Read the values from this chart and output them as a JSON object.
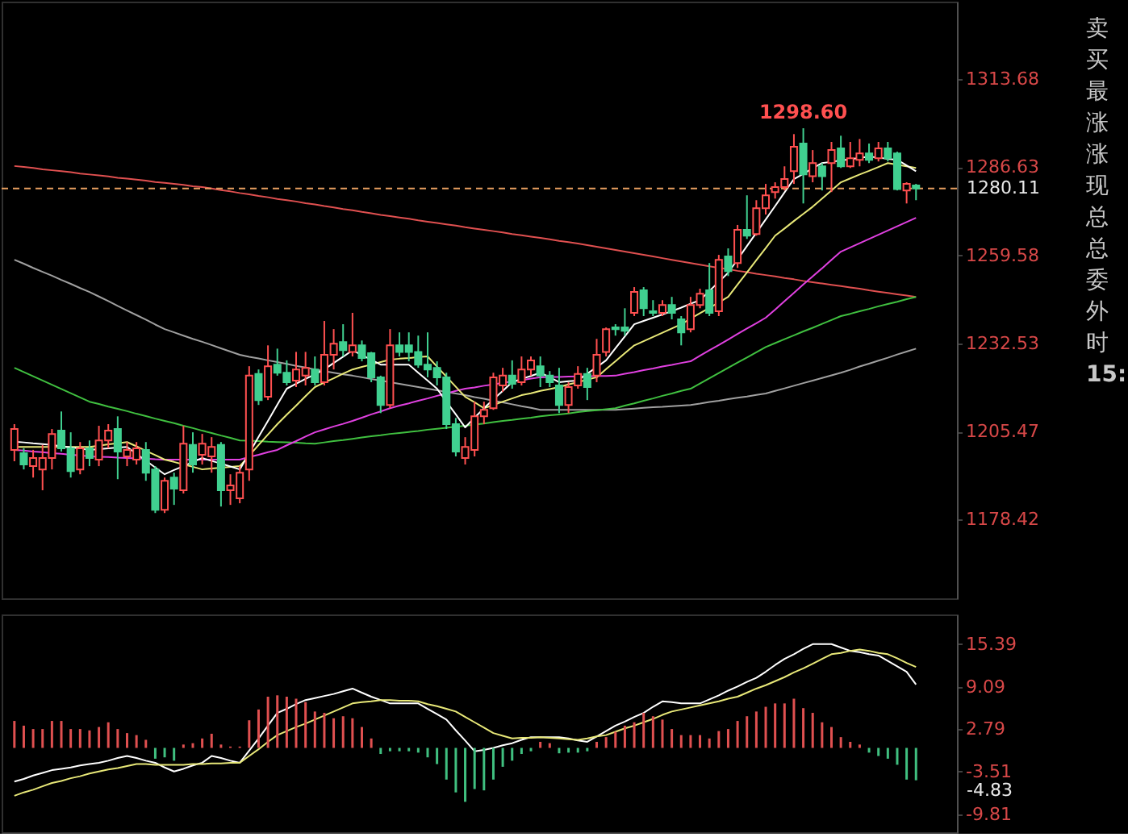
{
  "chart_data": [
    {
      "type": "candlestick",
      "categories": [
        null,
        null,
        null,
        null,
        null,
        null,
        null,
        null,
        null,
        null,
        null,
        null,
        null,
        null,
        null,
        null,
        null,
        null,
        null,
        null,
        null,
        null,
        null,
        null,
        null,
        null,
        null,
        null,
        null,
        null,
        null,
        null,
        null,
        null,
        null,
        null,
        null,
        null,
        null,
        null,
        null,
        null,
        null,
        null,
        null,
        null,
        null,
        null,
        null,
        null,
        null,
        null,
        null,
        null,
        null,
        null,
        null,
        null,
        null,
        null,
        null,
        null,
        null,
        null,
        null,
        null,
        null,
        null,
        null,
        null,
        null,
        null,
        null,
        null,
        null,
        null,
        null,
        null,
        null,
        null,
        null,
        null,
        null,
        null,
        null,
        null,
        null,
        null,
        null,
        null,
        null,
        null,
        null,
        null,
        null,
        null,
        null
      ],
      "ohlc": [
        [
          1199.8,
          1207.7,
          1196.3,
          1206.2
        ],
        [
          1198.8,
          1200.3,
          1193.8,
          1195.3
        ],
        [
          1194.8,
          1199.8,
          1191.3,
          1197.3
        ],
        [
          1193.8,
          1201.3,
          1187.4,
          1197.3
        ],
        [
          1197.3,
          1206.2,
          1193.8,
          1204.7
        ],
        [
          1205.7,
          1211.6,
          1199.3,
          1200.3
        ],
        [
          1200.3,
          1205.2,
          1191.3,
          1193.3
        ],
        [
          1193.8,
          1202.2,
          1192.3,
          1200.3
        ],
        [
          1200.3,
          1202.7,
          1194.8,
          1197.3
        ],
        [
          1196.8,
          1207.2,
          1194.8,
          1202.7
        ],
        [
          1202.7,
          1207.7,
          1200.3,
          1205.7
        ],
        [
          1206.2,
          1210.1,
          1190.8,
          1199.3
        ],
        [
          1197.8,
          1202.2,
          1194.8,
          1199.8
        ],
        [
          1196.8,
          1202.2,
          1195.3,
          1200.3
        ],
        [
          1199.8,
          1202.2,
          1190.3,
          1192.8
        ],
        [
          1193.8,
          1194.8,
          1180.4,
          1181.4
        ],
        [
          1181.4,
          1191.3,
          1180.4,
          1190.3
        ],
        [
          1191.3,
          1192.8,
          1182.9,
          1187.9
        ],
        [
          1187.4,
          1207.2,
          1186.4,
          1201.7
        ],
        [
          1201.3,
          1205.2,
          1192.8,
          1195.3
        ],
        [
          1198.3,
          1204.7,
          1195.3,
          1201.7
        ],
        [
          1197.8,
          1203.7,
          1192.8,
          1200.7
        ],
        [
          1201.3,
          1202.2,
          1182.4,
          1187.4
        ],
        [
          1187.4,
          1192.3,
          1182.9,
          1188.9
        ],
        [
          1184.9,
          1194.8,
          1183.4,
          1192.8
        ],
        [
          1193.8,
          1225.5,
          1190.3,
          1222.6
        ],
        [
          1223.1,
          1224.5,
          1213.6,
          1215.1
        ],
        [
          1216.1,
          1231.9,
          1215.1,
          1225.5
        ],
        [
          1226.0,
          1230.9,
          1222.6,
          1223.5
        ],
        [
          1223.5,
          1227.3,
          1219.6,
          1220.6
        ],
        [
          1221.1,
          1229.9,
          1219.1,
          1224.5
        ],
        [
          1222.6,
          1229.9,
          1219.6,
          1225.0
        ],
        [
          1224.5,
          1228.5,
          1219.6,
          1220.6
        ],
        [
          1220.6,
          1239.4,
          1219.6,
          1229.0
        ],
        [
          1229.0,
          1236.9,
          1224.5,
          1232.4
        ],
        [
          1232.9,
          1238.4,
          1228.5,
          1230.4
        ],
        [
          1229.9,
          1241.9,
          1228.5,
          1231.9
        ],
        [
          1231.9,
          1233.4,
          1227.0,
          1228.0
        ],
        [
          1229.5,
          1229.9,
          1220.6,
          1222.1
        ],
        [
          1222.1,
          1222.6,
          1211.1,
          1213.6
        ],
        [
          1213.6,
          1236.9,
          1212.6,
          1231.9
        ],
        [
          1231.9,
          1235.9,
          1228.5,
          1229.9
        ],
        [
          1231.9,
          1235.9,
          1227.0,
          1229.9
        ],
        [
          1229.9,
          1234.9,
          1225.0,
          1226.0
        ],
        [
          1226.0,
          1235.9,
          1222.1,
          1224.5
        ],
        [
          1225.0,
          1227.0,
          1219.6,
          1222.1
        ],
        [
          1222.1,
          1223.5,
          1206.2,
          1207.7
        ],
        [
          1207.7,
          1209.6,
          1197.8,
          1199.3
        ],
        [
          1197.3,
          1203.7,
          1195.3,
          1200.7
        ],
        [
          1199.8,
          1214.6,
          1197.8,
          1210.1
        ],
        [
          1210.1,
          1214.6,
          1207.7,
          1212.1
        ],
        [
          1212.6,
          1223.5,
          1212.1,
          1222.1
        ],
        [
          1219.6,
          1225.0,
          1217.6,
          1222.6
        ],
        [
          1222.6,
          1227.3,
          1218.6,
          1220.1
        ],
        [
          1220.6,
          1228.5,
          1219.6,
          1224.5
        ],
        [
          1224.5,
          1228.5,
          1222.6,
          1227.3
        ],
        [
          1225.5,
          1228.5,
          1219.1,
          1222.6
        ],
        [
          1222.6,
          1224.0,
          1219.1,
          1220.6
        ],
        [
          1219.6,
          1225.0,
          1211.1,
          1213.6
        ],
        [
          1213.6,
          1220.6,
          1211.1,
          1219.1
        ],
        [
          1219.6,
          1225.5,
          1218.6,
          1223.1
        ],
        [
          1223.1,
          1225.0,
          1215.1,
          1219.1
        ],
        [
          1222.6,
          1233.9,
          1220.6,
          1229.0
        ],
        [
          1229.9,
          1237.4,
          1228.5,
          1236.9
        ],
        [
          1237.4,
          1238.4,
          1234.9,
          1236.9
        ],
        [
          1237.4,
          1243.3,
          1234.9,
          1236.4
        ],
        [
          1241.9,
          1249.8,
          1240.9,
          1248.3
        ],
        [
          1248.8,
          1249.8,
          1240.9,
          1243.3
        ],
        [
          1242.4,
          1245.8,
          1240.9,
          1241.9
        ],
        [
          1241.9,
          1245.8,
          1240.9,
          1244.3
        ],
        [
          1244.3,
          1246.8,
          1239.9,
          1241.9
        ],
        [
          1239.9,
          1240.9,
          1231.9,
          1235.9
        ],
        [
          1236.9,
          1246.8,
          1235.9,
          1244.3
        ],
        [
          1244.3,
          1249.3,
          1243.3,
          1247.8
        ],
        [
          1248.8,
          1257.2,
          1240.9,
          1241.9
        ],
        [
          1242.4,
          1259.7,
          1240.9,
          1258.2
        ],
        [
          1259.2,
          1261.7,
          1253.2,
          1254.7
        ],
        [
          1257.2,
          1268.9,
          1255.7,
          1267.4
        ],
        [
          1267.4,
          1278.0,
          1264.6,
          1265.6
        ],
        [
          1266.1,
          1276.5,
          1265.6,
          1274.0
        ],
        [
          1274.0,
          1281.5,
          1272.1,
          1278.0
        ],
        [
          1279.0,
          1282.0,
          1277.0,
          1280.5
        ],
        [
          1280.5,
          1286.9,
          1279.5,
          1283.0
        ],
        [
          1285.4,
          1296.8,
          1281.5,
          1292.9
        ],
        [
          1293.9,
          1298.6,
          1275.5,
          1284.4
        ],
        [
          1283.9,
          1291.9,
          1282.0,
          1287.9
        ],
        [
          1286.9,
          1287.9,
          1279.5,
          1283.9
        ],
        [
          1287.9,
          1294.4,
          1279.0,
          1291.9
        ],
        [
          1292.4,
          1296.3,
          1286.4,
          1286.9
        ],
        [
          1286.9,
          1294.4,
          1286.4,
          1289.4
        ],
        [
          1288.9,
          1295.3,
          1286.9,
          1290.9
        ],
        [
          1290.9,
          1293.9,
          1287.9,
          1288.9
        ],
        [
          1289.4,
          1294.4,
          1288.4,
          1292.4
        ],
        [
          1292.4,
          1294.4,
          1288.4,
          1289.4
        ],
        [
          1290.9,
          1291.4,
          1279.5,
          1279.9
        ],
        [
          1279.5,
          1282.0,
          1275.5,
          1281.5
        ],
        [
          1281.0,
          1281.5,
          1276.5,
          1280.11
        ]
      ],
      "colors": [
        "#ff5050",
        "#40d090",
        "#ff5050",
        "#ff5050",
        "#ff5050",
        "#40d090",
        "#40d090",
        "#ff5050",
        "#40d090",
        "#ff5050",
        "#ff5050",
        "#40d090",
        "#ff5050",
        "#ff5050",
        "#40d090",
        "#40d090",
        "#ff5050",
        "#40d090",
        "#ff5050",
        "#40d090",
        "#ff5050",
        "#ff5050",
        "#40d090",
        "#ff5050",
        "#ff5050",
        "#ff5050",
        "#40d090",
        "#ff5050",
        "#40d090",
        "#40d090",
        "#ff5050",
        "#ff5050",
        "#40d090",
        "#ff5050",
        "#ff5050",
        "#40d090",
        "#ff5050",
        "#40d090",
        "#40d090",
        "#40d090",
        "#ff5050",
        "#40d090",
        "#40d090",
        "#40d090",
        "#40d090",
        "#40d090",
        "#40d090",
        "#40d090",
        "#ff5050",
        "#ff5050",
        "#ff5050",
        "#ff5050",
        "#ff5050",
        "#40d090",
        "#ff5050",
        "#ff5050",
        "#40d090",
        "#40d090",
        "#40d090",
        "#ff5050",
        "#ff5050",
        "#40d090",
        "#ff5050",
        "#ff5050",
        "#40d090",
        "#40d090",
        "#ff5050",
        "#40d090",
        "#40d090",
        "#ff5050",
        "#40d090",
        "#40d090",
        "#ff5050",
        "#ff5050",
        "#40d090",
        "#ff5050",
        "#40d090",
        "#ff5050",
        "#40d090",
        "#ff5050",
        "#ff5050",
        "#ff5050",
        "#ff5050",
        "#ff5050",
        "#40d090",
        "#ff5050",
        "#40d090",
        "#ff5050",
        "#40d090",
        "#ff5050",
        "#ff5050",
        "#40d090",
        "#ff5050",
        "#40d090",
        "#40d090",
        "#ff5050",
        "#40d090"
      ],
      "series": [
        {
          "type": "line",
          "color": "#e05050",
          "values": [
            1287.0,
            1286.7,
            1286.4,
            1286.0,
            1285.7,
            1285.4,
            1285.1,
            1284.7,
            1284.4,
            1284.1,
            1283.8,
            1283.4,
            1283.1,
            1282.8,
            1282.5,
            1282.1,
            1281.8,
            1281.5,
            1281.2,
            1280.8,
            1280.5,
            1280.1,
            1279.6,
            1279.2,
            1278.7,
            1278.3,
            1277.8,
            1277.4,
            1276.9,
            1276.5,
            1276.1,
            1275.6,
            1275.2,
            1274.7,
            1274.3,
            1273.8,
            1273.4,
            1272.9,
            1272.5,
            1272.0,
            1271.6,
            1271.2,
            1270.8,
            1270.3,
            1269.9,
            1269.5,
            1269.1,
            1268.7,
            1268.2,
            1267.8,
            1267.4,
            1267.0,
            1266.6,
            1266.1,
            1265.7,
            1265.3,
            1264.9,
            1264.5,
            1264.0,
            1263.6,
            1263.2,
            1262.7,
            1262.2,
            1261.7,
            1261.2,
            1260.7,
            1260.2,
            1259.7,
            1259.2,
            1258.7,
            1258.2,
            1257.7,
            1257.2,
            1256.7,
            1256.2,
            1255.7,
            1255.3,
            1254.8,
            1254.4,
            1253.9,
            1253.5,
            1253.1,
            1252.6,
            1252.2,
            1251.7,
            1251.3,
            1250.9,
            1250.5,
            1250.1,
            1249.7,
            1249.3,
            1248.8,
            1248.4,
            1248.0,
            1247.6,
            1247.2,
            1246.8
          ]
        },
        {
          "type": "line",
          "color": "#a0a0a0",
          "values": [
            1258.2,
            1257.0,
            1255.7,
            1254.5,
            1253.3,
            1252.0,
            1250.8,
            1249.5,
            1248.3,
            1246.9,
            1245.5,
            1244.0,
            1242.6,
            1241.2,
            1239.8,
            1238.3,
            1236.9,
            1235.9,
            1234.9,
            1233.9,
            1233.0,
            1232.0,
            1231.0,
            1230.0,
            1229.0,
            1228.4,
            1227.9,
            1227.3,
            1226.8,
            1226.2,
            1225.6,
            1225.1,
            1224.5,
            1224.0,
            1223.5,
            1223.0,
            1222.6,
            1222.1,
            1221.6,
            1221.1,
            1220.6,
            1220.1,
            1219.6,
            1219.1,
            1218.6,
            1218.1,
            1217.6,
            1217.1,
            1216.6,
            1216.0,
            1215.5,
            1214.9,
            1214.4,
            1213.8,
            1213.2,
            1212.7,
            1212.1,
            1212.1,
            1212.1,
            1212.1,
            1212.1,
            1212.1,
            1212.1,
            1212.1,
            1212.1,
            1212.3,
            1212.5,
            1212.7,
            1212.9,
            1213.0,
            1213.2,
            1213.4,
            1213.6,
            1214.0,
            1214.5,
            1214.9,
            1215.4,
            1215.8,
            1216.2,
            1216.7,
            1217.1,
            1217.9,
            1218.7,
            1219.5,
            1220.3,
            1221.1,
            1221.9,
            1222.7,
            1223.5,
            1224.4,
            1225.4,
            1226.3,
            1227.2,
            1228.1,
            1229.1,
            1230.0,
            1230.9
          ]
        },
        {
          "type": "line",
          "color": "#40c040",
          "values": [
            1225.0,
            1223.7,
            1222.4,
            1221.1,
            1219.8,
            1218.5,
            1217.2,
            1215.9,
            1214.6,
            1213.9,
            1213.1,
            1212.4,
            1211.7,
            1210.9,
            1210.2,
            1209.4,
            1208.7,
            1208.0,
            1207.2,
            1206.5,
            1205.7,
            1205.0,
            1204.2,
            1203.5,
            1202.7,
            1202.6,
            1202.5,
            1202.3,
            1202.2,
            1202.1,
            1202.0,
            1201.8,
            1201.7,
            1202.1,
            1202.5,
            1202.8,
            1203.2,
            1203.6,
            1204.0,
            1204.3,
            1204.7,
            1205.0,
            1205.3,
            1205.6,
            1206.0,
            1206.3,
            1206.6,
            1206.9,
            1207.2,
            1207.6,
            1207.9,
            1208.3,
            1208.7,
            1209.0,
            1209.4,
            1209.7,
            1210.1,
            1210.4,
            1210.7,
            1211.0,
            1211.4,
            1211.7,
            1212.0,
            1212.3,
            1212.6,
            1213.4,
            1214.1,
            1214.9,
            1215.6,
            1216.4,
            1217.1,
            1217.9,
            1218.6,
            1220.2,
            1221.8,
            1223.4,
            1225.0,
            1226.6,
            1228.2,
            1229.8,
            1231.4,
            1232.6,
            1233.8,
            1235.0,
            1236.2,
            1237.3,
            1238.5,
            1239.7,
            1240.9,
            1241.6,
            1242.4,
            1243.1,
            1243.9,
            1244.6,
            1245.3,
            1246.1,
            1246.8
          ]
        },
        {
          "type": "line",
          "color": "#e040e0",
          "values": [
            1199.8,
            1199.6,
            1199.3,
            1199.1,
            1198.8,
            1198.6,
            1198.3,
            1198.1,
            1197.8,
            1197.7,
            1197.6,
            1197.4,
            1197.3,
            1197.2,
            1197.1,
            1196.9,
            1196.8,
            1196.8,
            1196.8,
            1196.8,
            1196.8,
            1196.8,
            1196.8,
            1196.8,
            1196.8,
            1197.6,
            1198.3,
            1199.1,
            1199.8,
            1201.2,
            1202.5,
            1203.9,
            1205.2,
            1206.1,
            1207.0,
            1207.8,
            1208.7,
            1209.7,
            1210.7,
            1211.6,
            1212.6,
            1213.4,
            1214.1,
            1214.9,
            1215.6,
            1216.4,
            1217.1,
            1217.9,
            1218.6,
            1219.0,
            1219.5,
            1219.9,
            1220.4,
            1220.8,
            1221.2,
            1221.7,
            1222.1,
            1222.2,
            1222.2,
            1222.3,
            1222.4,
            1222.4,
            1222.5,
            1222.5,
            1222.6,
            1223.2,
            1223.7,
            1224.3,
            1224.8,
            1225.4,
            1225.9,
            1226.5,
            1227.0,
            1228.7,
            1230.4,
            1232.0,
            1233.7,
            1235.4,
            1237.1,
            1238.7,
            1240.4,
            1242.9,
            1245.5,
            1248.0,
            1250.6,
            1253.1,
            1255.6,
            1258.2,
            1260.7,
            1262.0,
            1263.3,
            1264.6,
            1265.9,
            1267.2,
            1268.5,
            1269.8,
            1271.1
          ]
        },
        {
          "type": "line",
          "color": "#e8e878",
          "values": [
            1200.7,
            1200.7,
            1200.7,
            1200.7,
            1200.7,
            1200.7,
            1200.7,
            1200.7,
            1200.7,
            1201.1,
            1201.5,
            1201.8,
            1202.2,
            1200.9,
            1199.5,
            1198.2,
            1196.8,
            1196.1,
            1195.3,
            1194.6,
            1193.8,
            1194.1,
            1194.3,
            1194.6,
            1194.8,
            1198.0,
            1201.3,
            1204.5,
            1207.7,
            1210.6,
            1213.4,
            1216.3,
            1219.1,
            1220.5,
            1221.8,
            1223.2,
            1224.5,
            1225.3,
            1226.0,
            1226.8,
            1227.5,
            1227.8,
            1228.0,
            1228.3,
            1228.5,
            1225.4,
            1222.3,
            1219.2,
            1216.1,
            1214.4,
            1212.6,
            1213.6,
            1214.6,
            1215.6,
            1216.6,
            1217.2,
            1217.9,
            1218.5,
            1219.1,
            1219.9,
            1220.6,
            1221.4,
            1222.1,
            1224.6,
            1227.0,
            1229.5,
            1231.9,
            1233.2,
            1234.5,
            1235.8,
            1237.1,
            1238.4,
            1240.1,
            1241.8,
            1243.4,
            1245.1,
            1246.8,
            1250.6,
            1254.3,
            1258.1,
            1261.8,
            1265.6,
            1267.8,
            1270.1,
            1272.3,
            1274.5,
            1277.0,
            1279.5,
            1282.0,
            1283.2,
            1284.4,
            1285.5,
            1286.7,
            1287.9,
            1287.4,
            1286.9,
            1286.4
          ]
        },
        {
          "type": "line",
          "color": "#ffffff",
          "values": [
            1202.3,
            1202.1,
            1201.8,
            1201.6,
            1201.3,
            1200.9,
            1200.6,
            1200.2,
            1199.8,
            1200.0,
            1200.3,
            1200.5,
            1200.7,
            1198.6,
            1196.5,
            1194.4,
            1192.3,
            1193.6,
            1194.8,
            1196.1,
            1197.3,
            1196.4,
            1195.6,
            1194.7,
            1193.8,
            1198.8,
            1203.8,
            1208.7,
            1213.7,
            1218.6,
            1220.1,
            1221.6,
            1223.0,
            1224.5,
            1226.5,
            1228.4,
            1230.4,
            1228.9,
            1227.5,
            1226.0,
            1226.0,
            1226.0,
            1226.0,
            1223.5,
            1221.1,
            1218.6,
            1214.6,
            1210.7,
            1206.7,
            1209.7,
            1212.6,
            1215.3,
            1217.9,
            1220.6,
            1221.6,
            1222.5,
            1223.5,
            1222.1,
            1220.6,
            1220.9,
            1221.1,
            1223.2,
            1225.2,
            1227.3,
            1231.0,
            1234.7,
            1238.4,
            1239.4,
            1240.4,
            1241.4,
            1242.4,
            1243.5,
            1244.7,
            1245.8,
            1248.6,
            1251.4,
            1254.2,
            1258.3,
            1262.4,
            1266.5,
            1270.6,
            1274.7,
            1278.9,
            1283.0,
            1284.6,
            1286.3,
            1287.9,
            1288.3,
            1288.7,
            1289.1,
            1289.5,
            1289.9,
            1289.6,
            1289.2,
            1288.9,
            1287.2,
            1285.4
          ]
        }
      ],
      "ylim": [
        1154.2,
        1337.5
      ],
      "yticks": [
        1178.42,
        1205.47,
        1232.53,
        1259.58,
        1286.63,
        1313.68
      ],
      "ref_lines": [
        {
          "axis": "y",
          "value": 1280.11,
          "label": "1280.11",
          "color": "#e8a060",
          "line_style": "dashed"
        }
      ],
      "annotations": [
        {
          "text": "1298.60",
          "y": 1298.6
        },
        "卖",
        "买",
        "最",
        "涨",
        "涨",
        "现",
        "总",
        "总",
        "委",
        "外",
        "时",
        "15:"
      ],
      "tick_labels": "y",
      "grid": false
    },
    {
      "type": "bar",
      "categories": [
        null,
        null,
        null,
        null,
        null,
        null,
        null,
        null,
        null,
        null,
        null,
        null,
        null,
        null,
        null,
        null,
        null,
        null,
        null,
        null,
        null,
        null,
        null,
        null,
        null,
        null,
        null,
        null,
        null,
        null,
        null,
        null,
        null,
        null,
        null,
        null,
        null,
        null,
        null,
        null,
        null,
        null,
        null,
        null,
        null,
        null,
        null,
        null,
        null,
        null,
        null,
        null,
        null,
        null,
        null,
        null,
        null,
        null,
        null,
        null,
        null,
        null,
        null,
        null,
        null,
        null,
        null,
        null,
        null,
        null,
        null,
        null,
        null,
        null,
        null,
        null,
        null,
        null,
        null,
        null,
        null,
        null,
        null,
        null,
        null,
        null,
        null,
        null,
        null,
        null,
        null,
        null,
        null,
        null,
        null,
        null,
        null
      ],
      "values": [
        4.0,
        3.3,
        2.8,
        2.8,
        4.0,
        4.0,
        2.8,
        2.8,
        2.6,
        3.1,
        3.8,
        2.8,
        2.2,
        1.9,
        1.2,
        -1.6,
        -1.4,
        -1.9,
        0.5,
        0.7,
        1.4,
        2.1,
        0.5,
        0.2,
        0.2,
        4.1,
        5.7,
        7.6,
        7.8,
        7.6,
        7.3,
        6.8,
        5.4,
        5.2,
        4.4,
        4.7,
        4.4,
        3.1,
        1.4,
        -0.9,
        -0.5,
        -0.5,
        -0.5,
        -0.7,
        -1.4,
        -2.4,
        -4.7,
        -6.6,
        -8.0,
        -6.1,
        -6.3,
        -4.7,
        -2.8,
        -1.9,
        -0.9,
        -0.5,
        0.9,
        0.7,
        -0.8,
        -0.7,
        -0.7,
        -0.5,
        0.9,
        1.6,
        2.4,
        3.3,
        3.8,
        5.2,
        4.7,
        4.2,
        2.8,
        1.9,
        1.9,
        1.9,
        1.4,
        2.5,
        2.8,
        4.0,
        4.7,
        5.4,
        6.1,
        6.6,
        6.6,
        7.3,
        5.9,
        5.2,
        3.8,
        3.1,
        1.6,
        0.9,
        0.5,
        -0.7,
        -1.2,
        -1.6,
        -2.5,
        -4.7,
        -4.8
      ],
      "colors": [
        "#e05050",
        "#e05050",
        "#e05050",
        "#e05050",
        "#e05050",
        "#e05050",
        "#e05050",
        "#e05050",
        "#e05050",
        "#e05050",
        "#e05050",
        "#e05050",
        "#e05050",
        "#e05050",
        "#e05050",
        "#40c080",
        "#40c080",
        "#40c080",
        "#e05050",
        "#e05050",
        "#e05050",
        "#e05050",
        "#e05050",
        "#e05050",
        "#e05050",
        "#e05050",
        "#e05050",
        "#e05050",
        "#e05050",
        "#e05050",
        "#e05050",
        "#e05050",
        "#e05050",
        "#e05050",
        "#e05050",
        "#e05050",
        "#e05050",
        "#e05050",
        "#e05050",
        "#40c080",
        "#40c080",
        "#40c080",
        "#40c080",
        "#40c080",
        "#40c080",
        "#40c080",
        "#40c080",
        "#40c080",
        "#40c080",
        "#40c080",
        "#40c080",
        "#40c080",
        "#40c080",
        "#40c080",
        "#40c080",
        "#40c080",
        "#e05050",
        "#e05050",
        "#40c080",
        "#40c080",
        "#40c080",
        "#40c080",
        "#e05050",
        "#e05050",
        "#e05050",
        "#e05050",
        "#e05050",
        "#e05050",
        "#e05050",
        "#e05050",
        "#e05050",
        "#e05050",
        "#e05050",
        "#e05050",
        "#e05050",
        "#e05050",
        "#e05050",
        "#e05050",
        "#e05050",
        "#e05050",
        "#e05050",
        "#e05050",
        "#e05050",
        "#e05050",
        "#e05050",
        "#e05050",
        "#e05050",
        "#e05050",
        "#e05050",
        "#e05050",
        "#e05050",
        "#40c080",
        "#40c080",
        "#40c080",
        "#40c080",
        "#40c080",
        "#40c080"
      ],
      "series": [
        {
          "type": "line",
          "color": "#ffffff",
          "values": [
            -5.0,
            -4.6,
            -4.1,
            -3.7,
            -3.3,
            -3.1,
            -2.9,
            -2.6,
            -2.4,
            -2.2,
            -1.9,
            -1.5,
            -1.2,
            -1.5,
            -1.9,
            -2.2,
            -2.9,
            -3.5,
            -3.1,
            -2.6,
            -2.2,
            -1.2,
            -1.5,
            -1.9,
            -2.2,
            -0.4,
            1.4,
            3.3,
            5.2,
            5.8,
            6.5,
            7.1,
            7.4,
            7.7,
            8.0,
            8.4,
            8.8,
            8.2,
            7.6,
            7.1,
            6.6,
            6.6,
            6.6,
            6.6,
            5.8,
            5.0,
            4.2,
            2.6,
            1.1,
            -0.5,
            -0.3,
            0.0,
            0.4,
            0.7,
            1.2,
            1.6,
            1.6,
            1.6,
            1.6,
            1.4,
            1.1,
            0.9,
            1.7,
            2.5,
            3.3,
            3.9,
            4.6,
            5.2,
            6.1,
            6.9,
            6.8,
            6.6,
            6.6,
            6.6,
            7.2,
            7.8,
            8.5,
            9.1,
            9.8,
            10.4,
            11.3,
            12.3,
            13.2,
            13.9,
            14.7,
            15.4,
            15.4,
            15.4,
            14.9,
            14.4,
            14.2,
            13.9,
            13.7,
            12.9,
            12.1,
            11.3,
            9.4
          ]
        },
        {
          "type": "line",
          "color": "#e8e878",
          "values": [
            -7.1,
            -6.6,
            -6.2,
            -5.7,
            -5.2,
            -4.9,
            -4.5,
            -4.2,
            -3.8,
            -3.5,
            -3.2,
            -3.0,
            -2.7,
            -2.4,
            -2.4,
            -2.5,
            -2.5,
            -2.5,
            -2.5,
            -2.4,
            -2.4,
            -2.3,
            -2.3,
            -2.2,
            -2.2,
            -1.2,
            -0.2,
            0.9,
            1.9,
            2.5,
            3.1,
            3.6,
            4.2,
            4.8,
            5.4,
            6.0,
            6.6,
            6.8,
            6.9,
            7.1,
            7.1,
            7.0,
            7.0,
            6.9,
            6.5,
            6.2,
            5.8,
            5.4,
            4.6,
            3.8,
            3.0,
            2.2,
            1.8,
            1.4,
            1.5,
            1.5,
            1.6,
            1.5,
            1.4,
            1.3,
            1.2,
            1.4,
            1.7,
            1.9,
            2.4,
            2.9,
            3.3,
            3.8,
            4.3,
            4.9,
            5.4,
            5.7,
            6.0,
            6.3,
            6.6,
            6.9,
            7.3,
            7.6,
            8.2,
            8.8,
            9.3,
            9.9,
            10.5,
            11.2,
            11.8,
            12.5,
            13.2,
            13.9,
            14.1,
            14.4,
            14.6,
            14.4,
            14.1,
            13.9,
            13.3,
            12.6,
            12.0
          ]
        }
      ],
      "ylim": [
        -12.5,
        19.8
      ],
      "yticks": [
        -9.81,
        -3.51,
        2.79,
        9.09,
        15.39
      ],
      "annotations": [
        "-4.83"
      ],
      "tick_labels": "y",
      "grid": false
    }
  ]
}
